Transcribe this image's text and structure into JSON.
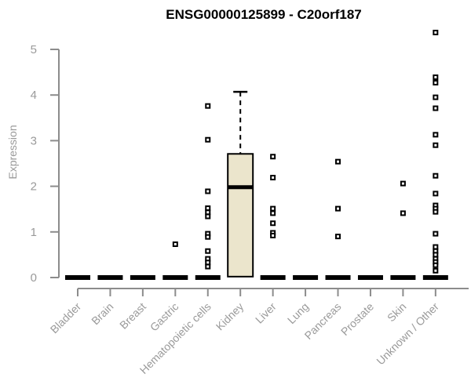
{
  "chart_data": {
    "type": "boxplot",
    "title": "ENSG00000125899 - C20orf187",
    "ylabel": "Expression",
    "ylim": [
      0,
      5
    ],
    "yticks": [
      0,
      1,
      2,
      3,
      4,
      5
    ],
    "grid": false,
    "legend": "none",
    "colors": {
      "box_fill": "#ebe5cc",
      "box_stroke": "#000000",
      "axis": "#8c8c8c",
      "tick_label": "#9a9a9a",
      "point": "#000000",
      "title": "#000000"
    },
    "categories": [
      "Bladder",
      "Brain",
      "Breast",
      "Gastric",
      "Hematopoietic cells",
      "Kidney",
      "Liver",
      "Lung",
      "Pancreas",
      "Prostate",
      "Skin",
      "Unknown / Other"
    ],
    "series": [
      {
        "category": "Bladder",
        "box": {
          "q1": 0,
          "median": 0,
          "q3": 0,
          "whisker_low": 0,
          "whisker_high": 0
        },
        "points": []
      },
      {
        "category": "Brain",
        "box": {
          "q1": 0,
          "median": 0,
          "q3": 0,
          "whisker_low": 0,
          "whisker_high": 0
        },
        "points": []
      },
      {
        "category": "Breast",
        "box": {
          "q1": 0,
          "median": 0,
          "q3": 0,
          "whisker_low": 0,
          "whisker_high": 0
        },
        "points": []
      },
      {
        "category": "Gastric",
        "box": {
          "q1": 0,
          "median": 0,
          "q3": 0,
          "whisker_low": 0,
          "whisker_high": 0
        },
        "points": [
          0.73
        ]
      },
      {
        "category": "Hematopoietic cells",
        "box": {
          "q1": 0,
          "median": 0,
          "q3": 0,
          "whisker_low": 0,
          "whisker_high": 0
        },
        "points": [
          3.76,
          3.02,
          1.89,
          1.52,
          1.43,
          1.34,
          0.96,
          0.89,
          0.58,
          0.41,
          0.33,
          0.24
        ]
      },
      {
        "category": "Kidney",
        "box": {
          "q1": 0.02,
          "median": 1.98,
          "q3": 2.71,
          "whisker_low": 0.02,
          "whisker_high": 4.07
        },
        "points": []
      },
      {
        "category": "Liver",
        "box": {
          "q1": 0,
          "median": 0,
          "q3": 0,
          "whisker_low": 0,
          "whisker_high": 0
        },
        "points": [
          2.65,
          2.19,
          1.51,
          1.41,
          1.19,
          0.98,
          0.92
        ]
      },
      {
        "category": "Lung",
        "box": {
          "q1": 0,
          "median": 0,
          "q3": 0,
          "whisker_low": 0,
          "whisker_high": 0
        },
        "points": []
      },
      {
        "category": "Pancreas",
        "box": {
          "q1": 0,
          "median": 0,
          "q3": 0,
          "whisker_low": 0,
          "whisker_high": 0
        },
        "points": [
          2.54,
          1.51,
          0.9
        ]
      },
      {
        "category": "Prostate",
        "box": {
          "q1": 0,
          "median": 0,
          "q3": 0,
          "whisker_low": 0,
          "whisker_high": 0
        },
        "points": []
      },
      {
        "category": "Skin",
        "box": {
          "q1": 0,
          "median": 0,
          "q3": 0,
          "whisker_low": 0,
          "whisker_high": 0
        },
        "points": [
          2.06,
          1.41
        ]
      },
      {
        "category": "Unknown / Other",
        "box": {
          "q1": 0,
          "median": 0,
          "q3": 0,
          "whisker_low": 0,
          "whisker_high": 0
        },
        "points": [
          5.37,
          4.39,
          4.27,
          3.95,
          3.71,
          3.13,
          2.9,
          2.23,
          1.84,
          1.58,
          1.51,
          1.44,
          0.96,
          0.67,
          0.58,
          0.5,
          0.41,
          0.34,
          0.27,
          0.15
        ]
      }
    ]
  }
}
